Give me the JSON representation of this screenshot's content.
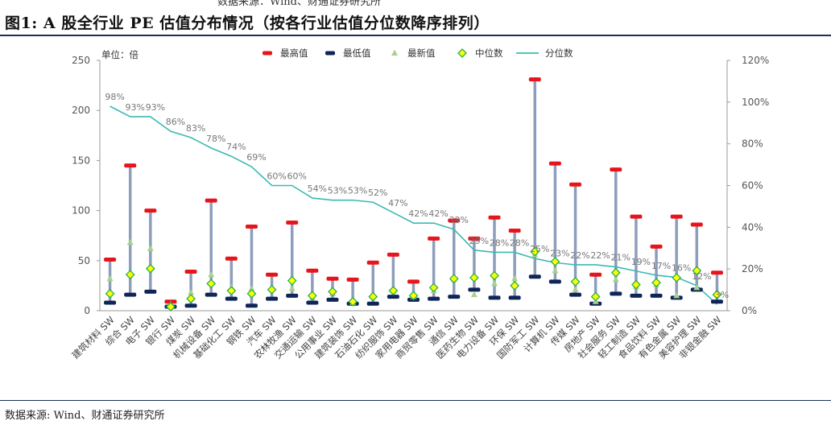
{
  "header": {
    "top_cut_text": "数据来源：Wind、财通证券研究所",
    "title": "图1: A 股全行业 PE 估值分布情况（按各行业估值分位数降序排列）"
  },
  "footer": {
    "source": "数据来源: Wind、财通证券研究所"
  },
  "chart_data": {
    "type": "mixed",
    "unit_label": "单位：倍",
    "legend": [
      "最高值",
      "最低值",
      "最新值",
      "中位数",
      "分位数"
    ],
    "legend_placement": "top",
    "colors": {
      "max": "#e8141b",
      "min": "#0f2557",
      "latest": "#a9d18e",
      "median": "#ffff00",
      "median_border": "#22b14c",
      "percentile": "#3cb9b3",
      "range_bar": "#8d9dbb"
    },
    "y_left": {
      "min": 0,
      "max": 250,
      "ticks": [
        0,
        50,
        100,
        150,
        200,
        250
      ]
    },
    "y_right": {
      "min": 0,
      "max": 120,
      "ticks": [
        "0%",
        "20%",
        "40%",
        "60%",
        "80%",
        "100%",
        "120%"
      ]
    },
    "grid": false,
    "categories": [
      "建筑材料 SW",
      "综合 SW",
      "电子 SW",
      "银行 SW",
      "煤炭 SW",
      "机械设备 SW",
      "基础化工 SW",
      "钢铁 SW",
      "汽车 SW",
      "农林牧渔 SW",
      "交通运输 SW",
      "公用事业 SW",
      "建筑装饰 SW",
      "石油石化 SW",
      "纺织服饰 SW",
      "家用电器 SW",
      "商贸零售 SW",
      "通信 SW",
      "医药生物 SW",
      "电力设备 SW",
      "环保 SW",
      "国防军工 SW",
      "计算机 SW",
      "传媒 SW",
      "房地产 SW",
      "社会服务 SW",
      "轻工制造 SW",
      "食品饮料 SW",
      "有色金属 SW",
      "美容护理 SW",
      "非银金融 SW"
    ],
    "max": [
      51,
      145,
      100,
      9,
      39,
      110,
      52,
      84,
      36,
      88,
      40,
      32,
      31,
      48,
      56,
      29,
      72,
      90,
      72,
      93,
      80,
      231,
      147,
      126,
      36,
      141,
      94,
      64,
      94,
      86,
      38
    ],
    "min": [
      8,
      16,
      19,
      4,
      5,
      16,
      12,
      5,
      12,
      15,
      8,
      11,
      7,
      7,
      14,
      11,
      12,
      14,
      21,
      13,
      13,
      34,
      29,
      16,
      7,
      17,
      15,
      15,
      13,
      21,
      9
    ],
    "latest": [
      32,
      68,
      62,
      6,
      18,
      36,
      23,
      22,
      22,
      22,
      13,
      17,
      8,
      15,
      20,
      14,
      20,
      31,
      16,
      27,
      32,
      56,
      40,
      21,
      9,
      31,
      24,
      26,
      15,
      23,
      17
    ],
    "median": [
      17,
      36,
      42,
      4,
      12,
      27,
      20,
      17,
      21,
      30,
      15,
      19,
      9,
      14,
      20,
      15,
      23,
      32,
      33,
      35,
      25,
      59,
      49,
      29,
      14,
      38,
      26,
      28,
      33,
      40,
      16
    ],
    "percentile": [
      98,
      93,
      93,
      86,
      83,
      78,
      74,
      69,
      60,
      60,
      54,
      53,
      53,
      52,
      47,
      42,
      42,
      39,
      29,
      28,
      28,
      25,
      23,
      22,
      22,
      21,
      19,
      17,
      16,
      12,
      3
    ],
    "percentile_labels": [
      "98%",
      "93%",
      "93%",
      "86%",
      "83%",
      "78%",
      "74%",
      "69%",
      "60%",
      "60%",
      "54%",
      "53%",
      "53%",
      "52%",
      "47%",
      "42%",
      "42%",
      "39%",
      "29%",
      "28%",
      "28%",
      "25%",
      "23%",
      "22%",
      "22%",
      "21%",
      "19%",
      "17%",
      "16%",
      "12%",
      "3%"
    ]
  }
}
